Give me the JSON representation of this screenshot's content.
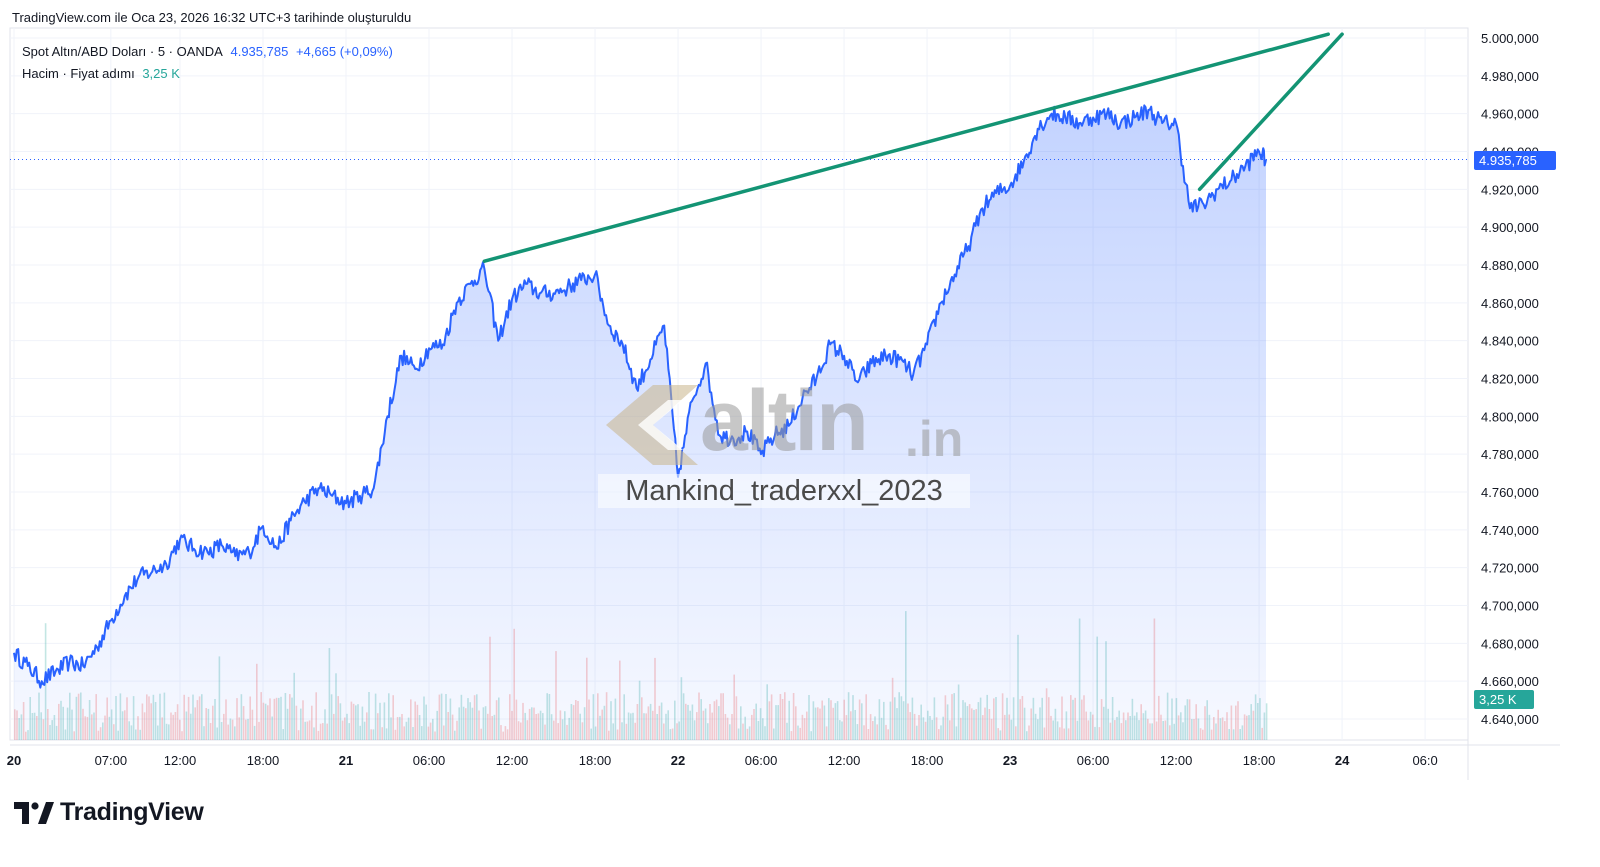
{
  "header": {
    "text": "TradingView.com ile Oca 23, 2026 16:32 UTC+3 tarihinde oluşturuldu"
  },
  "legend": {
    "symbol": "Spot Altın/ABD Doları · 5 · OANDA",
    "last": "4.935,785",
    "change": "+4,665 (+0,09%)",
    "volume_label": "Hacim · Fiyat adımı",
    "volume_value": "3,25 K"
  },
  "price_tag": "4.935,785",
  "volume_tag": "3,25 K",
  "watermark": {
    "brand": "altin",
    "brand_suffix": ".in",
    "user": "Mankind_traderxxl_2023"
  },
  "footer": {
    "logo_text": "TradingView"
  },
  "colors": {
    "line": "#2962ff",
    "fill": "#2962ff",
    "trend": "#139474",
    "vol_up": "#26a69a",
    "vol_down": "#ef5350",
    "grid": "#f0f3fa"
  },
  "chart_data": {
    "type": "area",
    "y_axis": {
      "ticks": [
        4640000,
        4660000,
        4680000,
        4700000,
        4720000,
        4740000,
        4760000,
        4780000,
        4800000,
        4820000,
        4840000,
        4860000,
        4880000,
        4900000,
        4920000,
        4940000,
        4960000,
        4980000,
        5000000
      ],
      "tick_labels": [
        "4.640,000",
        "4.660,000",
        "4.680,000",
        "4.700,000",
        "4.720,000",
        "4.740,000",
        "4.760,000",
        "4.780,000",
        "4.800,000",
        "4.820,000",
        "4.840,000",
        "4.860,000",
        "4.880,000",
        "4.900,000",
        "4.920,000",
        "4.940,000",
        "4.960,000",
        "4.980,000",
        "5.000,000"
      ],
      "range": [
        4630000,
        5005000
      ]
    },
    "x_axis": {
      "range": [
        0,
        100
      ],
      "ticks": [
        {
          "t": 0,
          "label": "20",
          "bold": true
        },
        {
          "t": 7,
          "label": "07:00"
        },
        {
          "t": 12,
          "label": "12:00"
        },
        {
          "t": 18,
          "label": "18:00"
        },
        {
          "t": 24,
          "label": "21",
          "bold": true
        },
        {
          "t": 30,
          "label": "06:00"
        },
        {
          "t": 36,
          "label": "12:00"
        },
        {
          "t": 42,
          "label": "18:00"
        },
        {
          "t": 48,
          "label": "22",
          "bold": true
        },
        {
          "t": 54,
          "label": "06:00"
        },
        {
          "t": 60,
          "label": "12:00"
        },
        {
          "t": 66,
          "label": "18:00"
        },
        {
          "t": 72,
          "label": "23",
          "bold": true
        },
        {
          "t": 78,
          "label": "06:00"
        },
        {
          "t": 84,
          "label": "12:00"
        },
        {
          "t": 90,
          "label": "18:00"
        },
        {
          "t": 96,
          "label": "24",
          "bold": true
        },
        {
          "t": 102,
          "label": "06:0"
        }
      ]
    },
    "series": [
      {
        "points": [
          [
            0,
            4675000
          ],
          [
            1,
            4668000
          ],
          [
            2,
            4660000
          ],
          [
            3,
            4665000
          ],
          [
            4,
            4670000
          ],
          [
            5,
            4668000
          ],
          [
            6,
            4678000
          ],
          [
            7,
            4692000
          ],
          [
            8,
            4705000
          ],
          [
            9,
            4715000
          ],
          [
            10,
            4718000
          ],
          [
            11,
            4722000
          ],
          [
            12,
            4735000
          ],
          [
            13,
            4730000
          ],
          [
            14,
            4728000
          ],
          [
            15,
            4732000
          ],
          [
            16,
            4726000
          ],
          [
            17,
            4728000
          ],
          [
            18,
            4742000
          ],
          [
            19,
            4730000
          ],
          [
            20,
            4745000
          ],
          [
            21,
            4755000
          ],
          [
            22,
            4762000
          ],
          [
            23,
            4758000
          ],
          [
            24,
            4754000
          ],
          [
            25,
            4758000
          ],
          [
            26,
            4762000
          ],
          [
            27,
            4800000
          ],
          [
            28,
            4832000
          ],
          [
            29,
            4825000
          ],
          [
            30,
            4836000
          ],
          [
            31,
            4838000
          ],
          [
            32,
            4860000
          ],
          [
            33,
            4870000
          ],
          [
            34,
            4878000
          ],
          [
            35,
            4840000
          ],
          [
            36,
            4862000
          ],
          [
            37,
            4870000
          ],
          [
            38,
            4865000
          ],
          [
            39,
            4865000
          ],
          [
            40,
            4868000
          ],
          [
            41,
            4872000
          ],
          [
            42,
            4875000
          ],
          [
            43,
            4848000
          ],
          [
            44,
            4838000
          ],
          [
            45,
            4815000
          ],
          [
            46,
            4830000
          ],
          [
            47,
            4848000
          ],
          [
            48,
            4768000
          ],
          [
            49,
            4808000
          ],
          [
            50,
            4828000
          ],
          [
            51,
            4790000
          ],
          [
            52,
            4788000
          ],
          [
            53,
            4792000
          ],
          [
            54,
            4780000
          ],
          [
            55,
            4790000
          ],
          [
            56,
            4795000
          ],
          [
            57,
            4810000
          ],
          [
            58,
            4820000
          ],
          [
            59,
            4838000
          ],
          [
            60,
            4832000
          ],
          [
            61,
            4818000
          ],
          [
            62,
            4828000
          ],
          [
            63,
            4832000
          ],
          [
            64,
            4830000
          ],
          [
            65,
            4822000
          ],
          [
            66,
            4838000
          ],
          [
            67,
            4860000
          ],
          [
            68,
            4875000
          ],
          [
            69,
            4890000
          ],
          [
            70,
            4910000
          ],
          [
            71,
            4918000
          ],
          [
            72,
            4922000
          ],
          [
            73,
            4935000
          ],
          [
            74,
            4952000
          ],
          [
            75,
            4960000
          ],
          [
            76,
            4958000
          ],
          [
            77,
            4955000
          ],
          [
            78,
            4958000
          ],
          [
            79,
            4960000
          ],
          [
            80,
            4955000
          ],
          [
            81,
            4958000
          ],
          [
            82,
            4962000
          ],
          [
            83,
            4955000
          ],
          [
            84,
            4955000
          ],
          [
            85,
            4910000
          ],
          [
            86,
            4912000
          ],
          [
            87,
            4920000
          ],
          [
            88,
            4925000
          ],
          [
            89,
            4932000
          ],
          [
            90,
            4940000
          ],
          [
            90.5,
            4935785
          ]
        ]
      }
    ],
    "trendlines": [
      {
        "from": [
          34,
          4882000
        ],
        "to": [
          95,
          5002000
        ]
      },
      {
        "from": [
          85.7,
          4920000
        ],
        "to": [
          96,
          5002000
        ]
      }
    ],
    "volume_series": [
      {
        "name": "Hacim",
        "last": 3250
      }
    ]
  }
}
